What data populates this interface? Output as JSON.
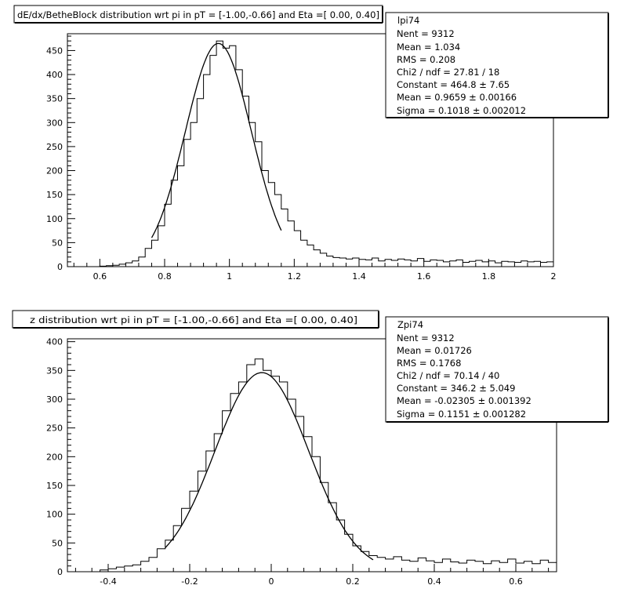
{
  "chart_data": [
    {
      "type": "histogram",
      "title": "dE/dx/BetheBlock distribution wrt pi in pT = [-1.00,-0.66] and Eta =[ 0.00, 0.40]",
      "xlabel": "",
      "ylabel": "",
      "xlim": [
        0.5,
        2.0
      ],
      "ylim": [
        0,
        485
      ],
      "x_ticks": [
        "0.6",
        "0.8",
        "1",
        "1.2",
        "1.4",
        "1.6",
        "1.8",
        "2"
      ],
      "x_tick_values": [
        0.6,
        0.8,
        1.0,
        1.2,
        1.4,
        1.6,
        1.8,
        2.0
      ],
      "y_ticks": [
        "0",
        "50",
        "100",
        "150",
        "200",
        "250",
        "300",
        "350",
        "400",
        "450"
      ],
      "y_tick_values": [
        0,
        50,
        100,
        150,
        200,
        250,
        300,
        350,
        400,
        450
      ],
      "bin_edges": [
        0.6,
        0.62,
        0.64,
        0.66,
        0.68,
        0.7,
        0.72,
        0.74,
        0.76,
        0.78,
        0.8,
        0.82,
        0.84,
        0.86,
        0.88,
        0.9,
        0.92,
        0.94,
        0.96,
        0.98,
        1.0,
        1.02,
        1.04,
        1.06,
        1.08,
        1.1,
        1.12,
        1.14,
        1.16,
        1.18,
        1.2,
        1.22,
        1.24,
        1.26,
        1.28,
        1.3,
        1.32,
        1.34,
        1.36,
        1.38,
        1.4,
        1.42,
        1.44,
        1.46,
        1.48,
        1.5,
        1.52,
        1.54,
        1.56,
        1.58,
        1.6,
        1.62,
        1.64,
        1.66,
        1.68,
        1.7,
        1.72,
        1.74,
        1.76,
        1.78,
        1.8,
        1.82,
        1.84,
        1.86,
        1.88,
        1.9,
        1.92,
        1.94,
        1.96,
        1.98,
        2.0
      ],
      "counts": [
        1,
        2,
        3,
        5,
        8,
        12,
        20,
        38,
        55,
        85,
        130,
        180,
        210,
        265,
        300,
        350,
        400,
        440,
        470,
        455,
        460,
        410,
        355,
        300,
        260,
        200,
        175,
        150,
        120,
        95,
        75,
        55,
        45,
        35,
        28,
        22,
        19,
        18,
        16,
        18,
        15,
        14,
        18,
        12,
        15,
        13,
        16,
        14,
        12,
        17,
        11,
        14,
        13,
        10,
        12,
        14,
        9,
        11,
        13,
        10,
        12,
        8,
        11,
        10,
        9,
        12,
        10,
        11,
        9,
        10
      ],
      "fit": {
        "constant": 464.8,
        "mean": 0.9659,
        "sigma": 0.1018,
        "range": [
          0.76,
          1.16
        ]
      },
      "stats": {
        "name": "lpi74",
        "lines": [
          "Nent = 9312",
          "Mean  =  1.034",
          "RMS   =  0.208",
          "Chi2 / ndf = 27.81 / 18",
          "Constant = 464.8 ± 7.65",
          "Mean     = 0.9659 ± 0.00166",
          "Sigma    = 0.1018 ± 0.002012"
        ]
      }
    },
    {
      "type": "histogram",
      "title": "z distribution wrt pi in pT = [-1.00,-0.66] and Eta =[ 0.00, 0.40]",
      "xlabel": "",
      "ylabel": "",
      "xlim": [
        -0.5,
        0.7
      ],
      "ylim": [
        0,
        405
      ],
      "x_ticks": [
        "-0.4",
        "-0.2",
        "0",
        "0.2",
        "0.4",
        "0.6"
      ],
      "x_tick_values": [
        -0.4,
        -0.2,
        0.0,
        0.2,
        0.4,
        0.6
      ],
      "y_ticks": [
        "0",
        "50",
        "100",
        "150",
        "200",
        "250",
        "300",
        "350",
        "400"
      ],
      "y_tick_values": [
        0,
        50,
        100,
        150,
        200,
        250,
        300,
        350,
        400
      ],
      "bin_edges": [
        -0.42,
        -0.4,
        -0.38,
        -0.36,
        -0.34,
        -0.32,
        -0.3,
        -0.28,
        -0.26,
        -0.24,
        -0.22,
        -0.2,
        -0.18,
        -0.16,
        -0.14,
        -0.12,
        -0.1,
        -0.08,
        -0.06,
        -0.04,
        -0.02,
        0.0,
        0.02,
        0.04,
        0.06,
        0.08,
        0.1,
        0.12,
        0.14,
        0.16,
        0.18,
        0.2,
        0.22,
        0.24,
        0.26,
        0.28,
        0.3,
        0.32,
        0.34,
        0.36,
        0.38,
        0.4,
        0.42,
        0.44,
        0.46,
        0.48,
        0.5,
        0.52,
        0.54,
        0.56,
        0.58,
        0.6,
        0.62,
        0.64,
        0.66,
        0.68,
        0.7
      ],
      "counts": [
        3,
        5,
        8,
        10,
        12,
        18,
        25,
        40,
        55,
        80,
        110,
        140,
        175,
        210,
        240,
        280,
        310,
        330,
        360,
        370,
        350,
        340,
        330,
        300,
        270,
        235,
        200,
        155,
        120,
        90,
        65,
        45,
        35,
        28,
        25,
        22,
        26,
        20,
        18,
        24,
        19,
        16,
        22,
        17,
        15,
        20,
        18,
        14,
        19,
        16,
        22,
        15,
        18,
        14,
        20,
        16
      ],
      "fit": {
        "constant": 346.2,
        "mean": -0.02305,
        "sigma": 0.1151,
        "range": [
          -0.26,
          0.25
        ]
      },
      "stats": {
        "name": "Zpi74",
        "lines": [
          "Nent = 9312",
          "Mean  = 0.01726",
          "RMS   = 0.1768",
          "Chi2 / ndf = 70.14 / 40",
          "Constant = 346.2 ± 5.049",
          "Mean     = -0.02305 ± 0.001392",
          "Sigma    = 0.1151 ± 0.001282"
        ]
      }
    }
  ]
}
